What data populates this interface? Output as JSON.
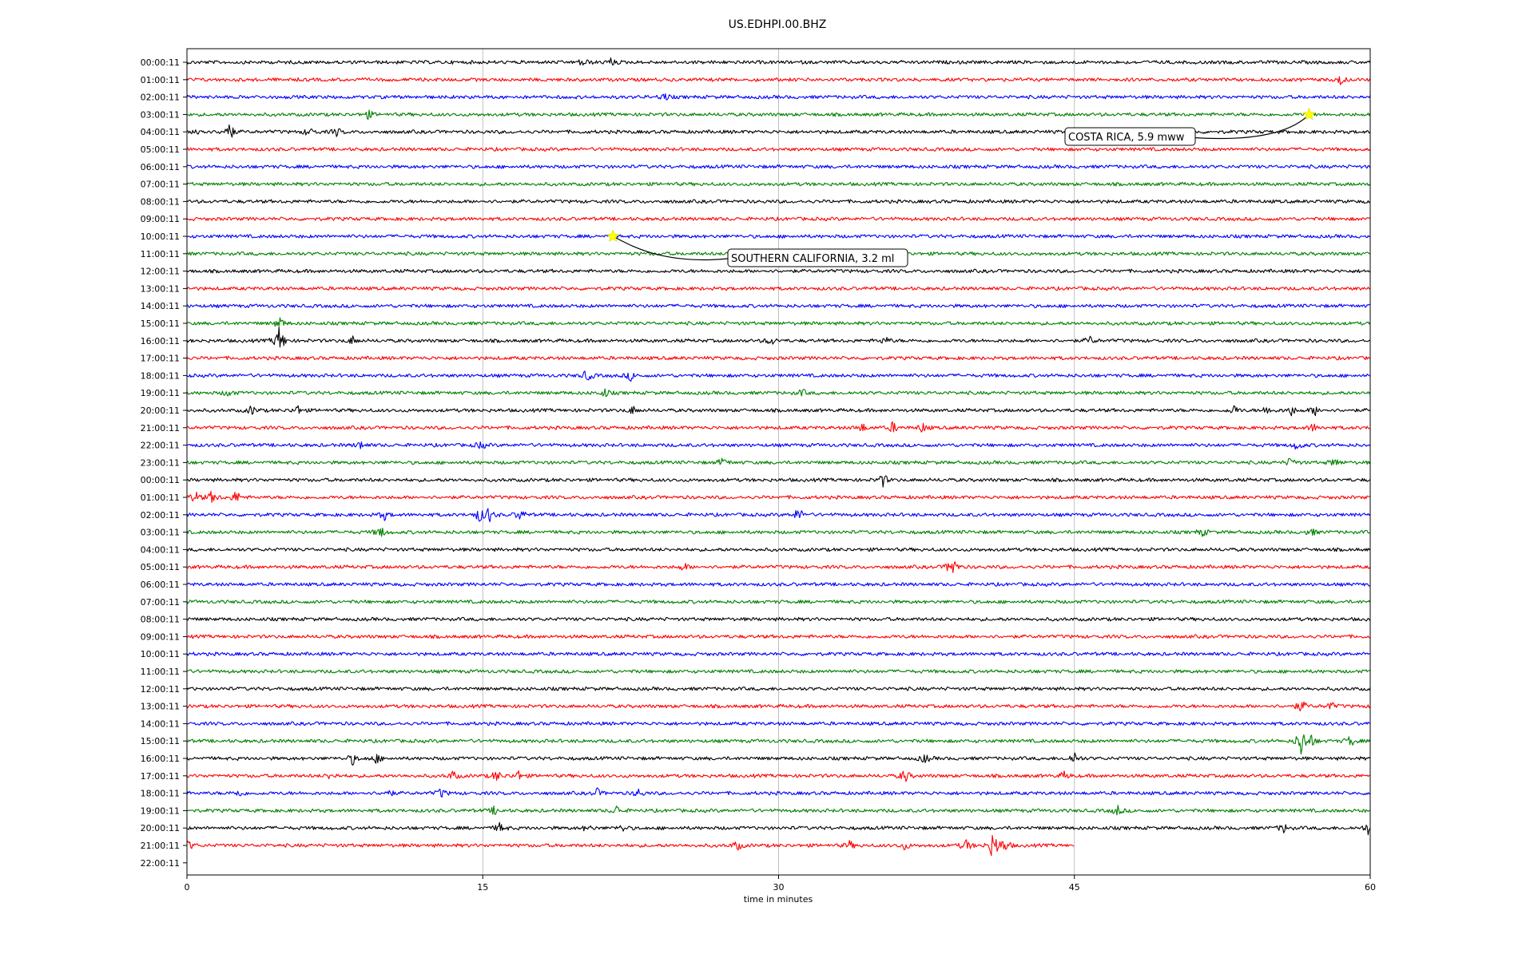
{
  "chart_data": {
    "type": "line",
    "title": "US.EDHPI.00.BHZ",
    "xlabel": "time in minutes",
    "ylabel": "",
    "xlim": [
      0,
      60
    ],
    "x_ticks": [
      0,
      15,
      30,
      45,
      60
    ],
    "grid": "vertical",
    "colors": [
      "#000000",
      "#ff0000",
      "#0000ff",
      "#008000"
    ],
    "rows": [
      "00:00:11",
      "01:00:11",
      "02:00:11",
      "03:00:11",
      "04:00:11",
      "05:00:11",
      "06:00:11",
      "07:00:11",
      "08:00:11",
      "09:00:11",
      "10:00:11",
      "11:00:11",
      "12:00:11",
      "13:00:11",
      "14:00:11",
      "15:00:11",
      "16:00:11",
      "17:00:11",
      "18:00:11",
      "19:00:11",
      "20:00:11",
      "21:00:11",
      "22:00:11",
      "23:00:11",
      "00:00:11",
      "01:00:11",
      "02:00:11",
      "03:00:11",
      "04:00:11",
      "05:00:11",
      "06:00:11",
      "07:00:11",
      "08:00:11",
      "09:00:11",
      "10:00:11",
      "11:00:11",
      "12:00:11",
      "13:00:11",
      "14:00:11",
      "15:00:11",
      "16:00:11",
      "17:00:11",
      "18:00:11",
      "19:00:11",
      "20:00:11",
      "21:00:11",
      "22:00:11"
    ],
    "trace_end_minutes": {
      "45": 45
    },
    "events": [
      {
        "row": 3,
        "minute": 56.9,
        "label": "COSTA RICA, 5.9 mww",
        "marker_color": "#ffff00"
      },
      {
        "row": 10,
        "minute": 21.6,
        "label": "SOUTHERN CALIFORNIA, 3.2 ml",
        "marker_color": "#ffff00"
      }
    ],
    "bursts": [
      {
        "row": 0,
        "minute": 20.1,
        "amp": 6
      },
      {
        "row": 0,
        "minute": 21.5,
        "amp": 5
      },
      {
        "row": 1,
        "minute": 58.5,
        "amp": 6
      },
      {
        "row": 2,
        "minute": 24.2,
        "amp": 5
      },
      {
        "row": 3,
        "minute": 9.2,
        "amp": 5
      },
      {
        "row": 4,
        "minute": 0.6,
        "amp": 6
      },
      {
        "row": 4,
        "minute": 2.1,
        "amp": 15
      },
      {
        "row": 4,
        "minute": 6.2,
        "amp": 6
      },
      {
        "row": 4,
        "minute": 7.6,
        "amp": 5
      },
      {
        "row": 15,
        "minute": 4.7,
        "amp": 8
      },
      {
        "row": 16,
        "minute": 4.7,
        "amp": 20
      },
      {
        "row": 16,
        "minute": 8.4,
        "amp": 5
      },
      {
        "row": 16,
        "minute": 29.6,
        "amp": 6
      },
      {
        "row": 16,
        "minute": 35.4,
        "amp": 5
      },
      {
        "row": 16,
        "minute": 45.8,
        "amp": 5
      },
      {
        "row": 18,
        "minute": 20.3,
        "amp": 8
      },
      {
        "row": 18,
        "minute": 22.5,
        "amp": 6
      },
      {
        "row": 19,
        "minute": 2.1,
        "amp": 5
      },
      {
        "row": 19,
        "minute": 21.2,
        "amp": 5
      },
      {
        "row": 19,
        "minute": 31.2,
        "amp": 4
      },
      {
        "row": 20,
        "minute": 3.3,
        "amp": 6
      },
      {
        "row": 20,
        "minute": 5.6,
        "amp": 6
      },
      {
        "row": 20,
        "minute": 22.6,
        "amp": 5
      },
      {
        "row": 20,
        "minute": 53.1,
        "amp": 6
      },
      {
        "row": 20,
        "minute": 54.8,
        "amp": 6
      },
      {
        "row": 20,
        "minute": 56.0,
        "amp": 6
      },
      {
        "row": 20,
        "minute": 57.2,
        "amp": 6
      },
      {
        "row": 21,
        "minute": 34.2,
        "amp": 6
      },
      {
        "row": 21,
        "minute": 35.8,
        "amp": 7
      },
      {
        "row": 21,
        "minute": 37.3,
        "amp": 6
      },
      {
        "row": 21,
        "minute": 57.1,
        "amp": 5
      },
      {
        "row": 22,
        "minute": 8.8,
        "amp": 5
      },
      {
        "row": 22,
        "minute": 14.9,
        "amp": 5
      },
      {
        "row": 22,
        "minute": 56.3,
        "amp": 6
      },
      {
        "row": 23,
        "minute": 27.2,
        "amp": 6
      },
      {
        "row": 23,
        "minute": 56.0,
        "amp": 7
      },
      {
        "row": 23,
        "minute": 58.2,
        "amp": 6
      },
      {
        "row": 24,
        "minute": 35.3,
        "amp": 8
      },
      {
        "row": 25,
        "minute": 0.4,
        "amp": 8
      },
      {
        "row": 25,
        "minute": 1.3,
        "amp": 9
      },
      {
        "row": 25,
        "minute": 2.5,
        "amp": 8
      },
      {
        "row": 26,
        "minute": 10.0,
        "amp": 6
      },
      {
        "row": 26,
        "minute": 14.8,
        "amp": 8
      },
      {
        "row": 26,
        "minute": 15.3,
        "amp": 10
      },
      {
        "row": 26,
        "minute": 16.9,
        "amp": 7
      },
      {
        "row": 26,
        "minute": 31.0,
        "amp": 9
      },
      {
        "row": 27,
        "minute": 9.8,
        "amp": 8
      },
      {
        "row": 27,
        "minute": 51.5,
        "amp": 5
      },
      {
        "row": 27,
        "minute": 57.0,
        "amp": 5
      },
      {
        "row": 29,
        "minute": 25.2,
        "amp": 5
      },
      {
        "row": 29,
        "minute": 38.8,
        "amp": 16
      },
      {
        "row": 37,
        "minute": 56.5,
        "amp": 8
      },
      {
        "row": 37,
        "minute": 58.0,
        "amp": 5
      },
      {
        "row": 39,
        "minute": 56.5,
        "amp": 20
      },
      {
        "row": 39,
        "minute": 57.0,
        "amp": 8
      },
      {
        "row": 39,
        "minute": 59.0,
        "amp": 7
      },
      {
        "row": 40,
        "minute": 8.4,
        "amp": 7
      },
      {
        "row": 40,
        "minute": 9.6,
        "amp": 6
      },
      {
        "row": 40,
        "minute": 37.4,
        "amp": 6
      },
      {
        "row": 40,
        "minute": 45.0,
        "amp": 8
      },
      {
        "row": 41,
        "minute": 7.3,
        "amp": 5
      },
      {
        "row": 41,
        "minute": 13.5,
        "amp": 6
      },
      {
        "row": 41,
        "minute": 15.7,
        "amp": 7
      },
      {
        "row": 41,
        "minute": 16.8,
        "amp": 6
      },
      {
        "row": 41,
        "minute": 36.4,
        "amp": 9
      },
      {
        "row": 41,
        "minute": 44.5,
        "amp": 5
      },
      {
        "row": 42,
        "minute": 2.6,
        "amp": 5
      },
      {
        "row": 42,
        "minute": 10.2,
        "amp": 5
      },
      {
        "row": 42,
        "minute": 12.9,
        "amp": 6
      },
      {
        "row": 42,
        "minute": 20.8,
        "amp": 5
      },
      {
        "row": 42,
        "minute": 22.9,
        "amp": 5
      },
      {
        "row": 43,
        "minute": 15.6,
        "amp": 5
      },
      {
        "row": 43,
        "minute": 21.8,
        "amp": 6
      },
      {
        "row": 43,
        "minute": 47.2,
        "amp": 6
      },
      {
        "row": 44,
        "minute": 15.9,
        "amp": 7
      },
      {
        "row": 44,
        "minute": 20.3,
        "amp": 4
      },
      {
        "row": 44,
        "minute": 22.1,
        "amp": 4
      },
      {
        "row": 44,
        "minute": 55.6,
        "amp": 6
      },
      {
        "row": 44,
        "minute": 59.9,
        "amp": 7
      },
      {
        "row": 45,
        "minute": 0.1,
        "amp": 6
      },
      {
        "row": 45,
        "minute": 27.9,
        "amp": 6
      },
      {
        "row": 45,
        "minute": 33.6,
        "amp": 5
      },
      {
        "row": 45,
        "minute": 36.4,
        "amp": 5
      },
      {
        "row": 45,
        "minute": 39.5,
        "amp": 8
      },
      {
        "row": 45,
        "minute": 40.9,
        "amp": 22
      },
      {
        "row": 45,
        "minute": 41.5,
        "amp": 8
      }
    ]
  }
}
